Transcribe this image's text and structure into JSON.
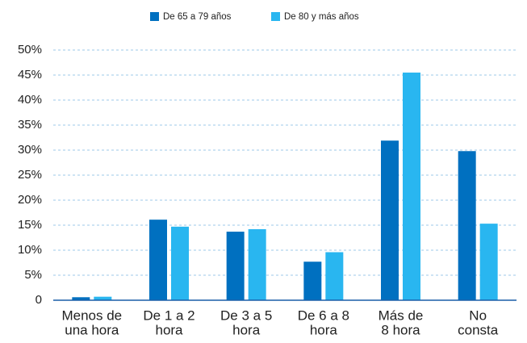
{
  "chart_data": {
    "type": "bar",
    "categories": [
      [
        "Menos de",
        "una hora"
      ],
      [
        "De 1 a 2",
        "hora"
      ],
      [
        "De 3 a 5",
        "hora"
      ],
      [
        "De 6 a 8",
        "hora"
      ],
      [
        "Más de",
        "8 hora"
      ],
      [
        "No",
        "consta"
      ]
    ],
    "series": [
      {
        "name": "De 65 a 79 años",
        "color": "#0070c0",
        "values": [
          0.6,
          16.1,
          13.7,
          7.7,
          31.9,
          29.8
        ]
      },
      {
        "name": "De 80 y más años",
        "color": "#29b6f0",
        "values": [
          0.7,
          14.7,
          14.2,
          9.6,
          45.5,
          15.3
        ]
      }
    ],
    "ylim": [
      0,
      50
    ],
    "yticks": [
      0,
      {
        "value": 5,
        "label": "5%"
      },
      {
        "value": 10,
        "label": "10%"
      },
      {
        "value": 15,
        "label": "15%"
      },
      {
        "value": 20,
        "label": "20%"
      },
      {
        "value": 25,
        "label": "25%"
      },
      {
        "value": 30,
        "label": "30%"
      },
      {
        "value": 35,
        "label": "35%"
      },
      {
        "value": 40,
        "label": "40%"
      },
      {
        "value": 45,
        "label": "45%"
      },
      {
        "value": 50,
        "label": "50%"
      }
    ],
    "grid": true,
    "legend": "top"
  }
}
